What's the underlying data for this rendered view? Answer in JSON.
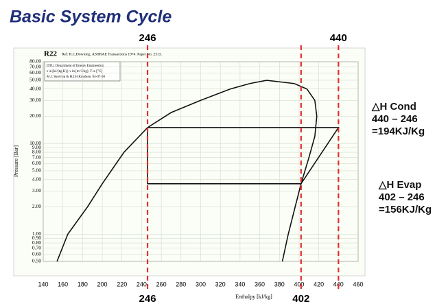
{
  "chart_data": {
    "type": "line",
    "title": "Basic System Cycle",
    "chart_title": "R22",
    "reference": "Ref: R.C.Downing, ASHRAE Transactions 1974. Paper No. 2313.",
    "info": [
      "DTU, Department of Energy Engineering",
      "s in [kJ/(kg K)]. v in [m^3/kg]. T in [°C]",
      "M.J. Skovrup & H.J.H Knudsen. 04-07-30"
    ],
    "xlabel": "Enthalpy [kJ/kg]",
    "ylabel": "Pressure [Bar]",
    "xlim": [
      140,
      460
    ],
    "xticks": [
      140,
      160,
      180,
      200,
      220,
      240,
      260,
      280,
      300,
      320,
      340,
      360,
      380,
      400,
      420,
      440,
      460
    ],
    "ylim": [
      0.5,
      80
    ],
    "ylog": true,
    "yticks": [
      {
        "value": 0.5,
        "label": "0.50"
      },
      {
        "value": 0.6,
        "label": "0.60"
      },
      {
        "value": 0.7,
        "label": "0.70"
      },
      {
        "value": 0.8,
        "label": "0.80"
      },
      {
        "value": 0.9,
        "label": "0.90"
      },
      {
        "value": 1,
        "label": "1.00"
      },
      {
        "value": 2,
        "label": "2.00"
      },
      {
        "value": 3,
        "label": "3.00"
      },
      {
        "value": 4,
        "label": "4.00"
      },
      {
        "value": 5,
        "label": "5.00"
      },
      {
        "value": 6,
        "label": "6.00"
      },
      {
        "value": 7,
        "label": "7.00"
      },
      {
        "value": 8,
        "label": "8.00"
      },
      {
        "value": 9,
        "label": "9.00"
      },
      {
        "value": 10,
        "label": "10.00"
      },
      {
        "value": 20,
        "label": "20.00"
      },
      {
        "value": 30,
        "label": "30.00"
      },
      {
        "value": 40,
        "label": "40.00"
      },
      {
        "value": 50,
        "label": "50.00"
      },
      {
        "value": 60,
        "label": "60.00"
      },
      {
        "value": 70,
        "label": "70.00"
      },
      {
        "value": 80,
        "label": "80.00"
      }
    ],
    "grid": true,
    "curves": [
      {
        "color": "#111111",
        "x": [
          154,
          165,
          185,
          200,
          222,
          246,
          270,
          300,
          330,
          350,
          367,
          395,
          408,
          416,
          418,
          416,
          410,
          402,
          396,
          389,
          383
        ],
        "y": [
          0.5,
          1,
          2,
          3.6,
          8,
          15,
          22,
          30,
          40,
          46,
          49.9,
          46,
          40,
          30,
          20,
          12,
          7,
          3.6,
          2,
          1,
          0.5
        ]
      },
      {
        "color": "#111111",
        "x": [
          246,
          440,
          402,
          246,
          246
        ],
        "y": [
          15,
          15,
          3.6,
          3.6,
          15
        ]
      }
    ],
    "vlines": [
      {
        "x": 246,
        "color": "#e0302a",
        "label_top": true,
        "label_bottom": true
      },
      {
        "x": 440,
        "color": "#e0302a",
        "label_top": true,
        "label_bottom": false
      },
      {
        "x": 402,
        "color": "#e0302a",
        "label_top": false,
        "label_bottom": true
      }
    ],
    "cond": [
      "△H Cond",
      "440 – 246",
      "=194KJ/Kg"
    ],
    "evap": [
      "△H Evap",
      "402 – 246",
      "=156KJ/Kg"
    ]
  }
}
